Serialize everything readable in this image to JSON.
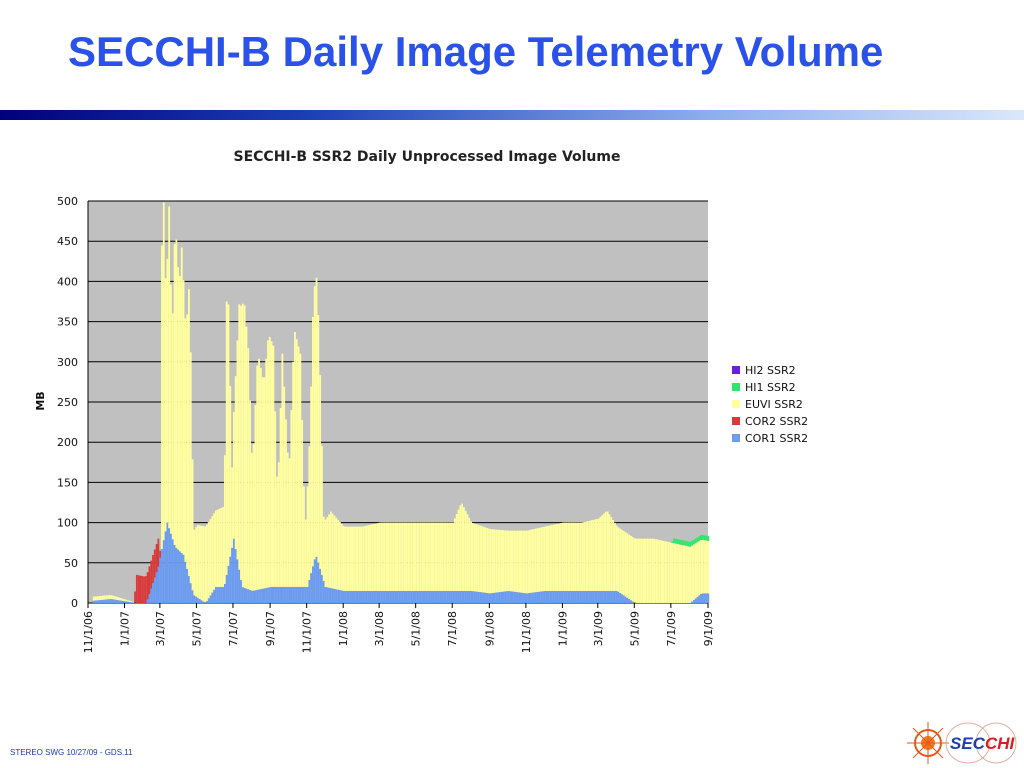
{
  "slide": {
    "title": "SECCHI-B Daily Image Telemetry Volume",
    "footer": "STEREO SWG 10/27/09 - GDS.11",
    "logo_text": {
      "a": "SEC",
      "b": "CHI"
    }
  },
  "colors": {
    "title": "#2a52e8",
    "plot_bg": "#c0c0c0",
    "HI2": "#6a1fd8",
    "HI1": "#2ee86e",
    "EUVI": "#ffffa0",
    "COR2": "#d83a3a",
    "COR1": "#6c9cf0"
  },
  "chart_data": {
    "type": "bar",
    "stacked": true,
    "title": "SECCHI-B SSR2 Daily Unprocessed Image Volume",
    "xlabel": "",
    "ylabel": "MB",
    "ylim": [
      0,
      500
    ],
    "yticks": [
      0,
      50,
      100,
      150,
      200,
      250,
      300,
      350,
      400,
      450,
      500
    ],
    "xlim": [
      "2006-11-01",
      "2009-09-01"
    ],
    "xtick_labels": [
      "11/1/06",
      "1/1/07",
      "3/1/07",
      "5/1/07",
      "7/1/07",
      "9/1/07",
      "11/1/07",
      "1/1/08",
      "3/1/08",
      "5/1/08",
      "7/1/08",
      "9/1/08",
      "11/1/08",
      "1/1/09",
      "3/1/09",
      "5/1/09",
      "7/1/09",
      "9/1/09"
    ],
    "grid": true,
    "legend_position": "right",
    "legend": [
      "HI2 SSR2",
      "HI1 SSR2",
      "EUVI SSR2",
      "COR2  SSR2",
      "COR1 SSR2"
    ],
    "series": [
      {
        "name": "COR1 SSR2",
        "color_key": "COR1",
        "points": [
          [
            "2006-11-10",
            3
          ],
          [
            "2006-12-08",
            5
          ],
          [
            "2007-01-20",
            0
          ],
          [
            "2007-02-05",
            0
          ],
          [
            "2007-02-25",
            45
          ],
          [
            "2007-03-01",
            60
          ],
          [
            "2007-03-12",
            100
          ],
          [
            "2007-03-25",
            70
          ],
          [
            "2007-04-08",
            60
          ],
          [
            "2007-04-25",
            10
          ],
          [
            "2007-05-15",
            0
          ],
          [
            "2007-06-01",
            20
          ],
          [
            "2007-06-15",
            20
          ],
          [
            "2007-07-01",
            80
          ],
          [
            "2007-07-15",
            20
          ],
          [
            "2007-08-01",
            15
          ],
          [
            "2007-09-01",
            20
          ],
          [
            "2007-10-01",
            20
          ],
          [
            "2007-11-01",
            20
          ],
          [
            "2007-11-15",
            60
          ],
          [
            "2007-12-01",
            20
          ],
          [
            "2008-01-01",
            15
          ],
          [
            "2008-02-01",
            15
          ],
          [
            "2008-03-01",
            15
          ],
          [
            "2008-04-01",
            15
          ],
          [
            "2008-05-01",
            15
          ],
          [
            "2008-06-01",
            15
          ],
          [
            "2008-07-01",
            15
          ],
          [
            "2008-08-01",
            15
          ],
          [
            "2008-09-01",
            12
          ],
          [
            "2008-10-01",
            15
          ],
          [
            "2008-11-01",
            12
          ],
          [
            "2008-12-01",
            15
          ],
          [
            "2009-01-01",
            15
          ],
          [
            "2009-02-01",
            15
          ],
          [
            "2009-03-01",
            15
          ],
          [
            "2009-04-01",
            15
          ],
          [
            "2009-05-01",
            0
          ],
          [
            "2009-06-01",
            0
          ],
          [
            "2009-07-01",
            0
          ],
          [
            "2009-08-01",
            0
          ],
          [
            "2009-08-20",
            12
          ],
          [
            "2009-09-01",
            12
          ]
        ]
      },
      {
        "name": "COR2  SSR2",
        "color_key": "COR2",
        "points": [
          [
            "2006-11-10",
            0
          ],
          [
            "2007-01-15",
            0
          ],
          [
            "2007-01-20",
            35
          ],
          [
            "2007-02-01",
            33
          ],
          [
            "2007-02-15",
            35
          ],
          [
            "2007-02-25",
            35
          ],
          [
            "2007-03-01",
            0
          ],
          [
            "2007-05-01",
            0
          ],
          [
            "2009-09-01",
            0
          ]
        ]
      },
      {
        "name": "EUVI SSR2",
        "color_key": "EUVI",
        "points": [
          [
            "2006-11-10",
            5
          ],
          [
            "2006-12-08",
            5
          ],
          [
            "2007-01-20",
            0
          ],
          [
            "2007-02-28",
            0
          ],
          [
            "2007-03-01",
            300
          ],
          [
            "2007-03-05",
            455
          ],
          [
            "2007-03-10",
            280
          ],
          [
            "2007-03-15",
            400
          ],
          [
            "2007-03-20",
            250
          ],
          [
            "2007-03-25",
            405
          ],
          [
            "2007-04-01",
            330
          ],
          [
            "2007-04-05",
            380
          ],
          [
            "2007-04-12",
            290
          ],
          [
            "2007-04-18",
            370
          ],
          [
            "2007-04-25",
            80
          ],
          [
            "2007-05-01",
            90
          ],
          [
            "2007-05-15",
            95
          ],
          [
            "2007-06-01",
            95
          ],
          [
            "2007-06-15",
            100
          ],
          [
            "2007-06-20",
            400
          ],
          [
            "2007-06-28",
            100
          ],
          [
            "2007-07-10",
            330
          ],
          [
            "2007-07-18",
            360
          ],
          [
            "2007-07-25",
            300
          ],
          [
            "2007-08-01",
            150
          ],
          [
            "2007-08-10",
            295
          ],
          [
            "2007-08-20",
            255
          ],
          [
            "2007-08-28",
            315
          ],
          [
            "2007-09-05",
            300
          ],
          [
            "2007-09-12",
            110
          ],
          [
            "2007-09-20",
            290
          ],
          [
            "2007-10-01",
            140
          ],
          [
            "2007-10-10",
            320
          ],
          [
            "2007-10-20",
            290
          ],
          [
            "2007-10-28",
            70
          ],
          [
            "2007-11-05",
            180
          ],
          [
            "2007-11-10",
            310
          ],
          [
            "2007-11-15",
            360
          ],
          [
            "2007-11-20",
            295
          ],
          [
            "2007-11-28",
            80
          ],
          [
            "2007-12-10",
            95
          ],
          [
            "2008-01-01",
            80
          ],
          [
            "2008-02-01",
            80
          ],
          [
            "2008-03-01",
            85
          ],
          [
            "2008-04-01",
            85
          ],
          [
            "2008-05-01",
            85
          ],
          [
            "2008-06-01",
            85
          ],
          [
            "2008-07-01",
            85
          ],
          [
            "2008-07-15",
            110
          ],
          [
            "2008-08-01",
            85
          ],
          [
            "2008-09-01",
            80
          ],
          [
            "2008-10-01",
            75
          ],
          [
            "2008-11-01",
            78
          ],
          [
            "2008-12-01",
            80
          ],
          [
            "2009-01-01",
            85
          ],
          [
            "2009-02-01",
            85
          ],
          [
            "2009-03-01",
            90
          ],
          [
            "2009-03-15",
            100
          ],
          [
            "2009-04-01",
            80
          ],
          [
            "2009-04-15",
            80
          ],
          [
            "2009-05-01",
            80
          ],
          [
            "2009-06-01",
            80
          ],
          [
            "2009-07-01",
            75
          ],
          [
            "2009-08-01",
            70
          ],
          [
            "2009-09-01",
            65
          ]
        ]
      },
      {
        "name": "HI1 SSR2",
        "color_key": "HI1",
        "points": [
          [
            "2006-11-10",
            0
          ],
          [
            "2009-07-01",
            0
          ],
          [
            "2009-07-05",
            6
          ],
          [
            "2009-08-01",
            6
          ],
          [
            "2009-09-01",
            6
          ]
        ]
      },
      {
        "name": "HI2 SSR2",
        "color_key": "HI2",
        "points": [
          [
            "2006-11-10",
            0
          ],
          [
            "2009-09-01",
            0
          ]
        ]
      }
    ]
  }
}
